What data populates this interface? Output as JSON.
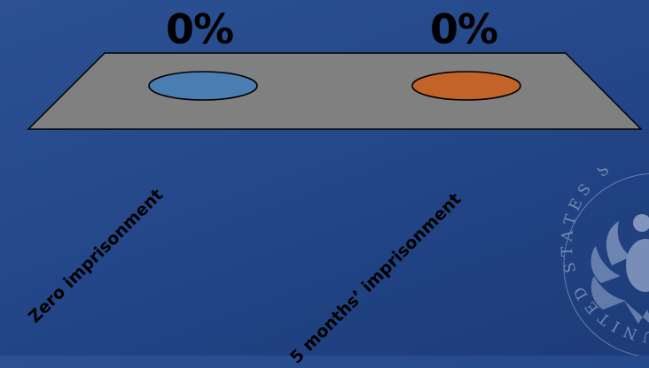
{
  "chart_data": {
    "type": "bar",
    "categories": [
      "Zero imprisonment",
      "5 months’ imprisonment"
    ],
    "values": [
      0,
      0
    ],
    "data_labels": [
      "0%",
      "0%"
    ],
    "colors": [
      "#4a7eb3",
      "#c2642a"
    ]
  },
  "background": {
    "seal_text": "UNITED STATES SENATE"
  }
}
